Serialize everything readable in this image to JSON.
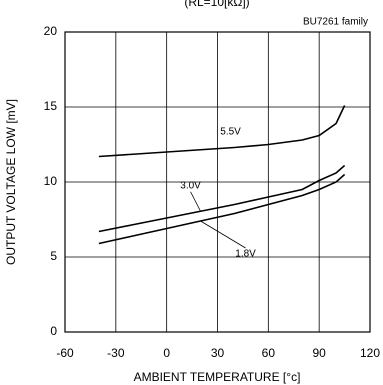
{
  "chart_data": {
    "type": "line",
    "title": "(RL=10[kΩ])",
    "annotation": "BU7261 family",
    "x_label": "AMBIENT TEMPERATURE [°c]",
    "y_label": "OUTPUT VOLTAGE LOW [mV]",
    "x": [
      -40,
      -20,
      0,
      20,
      40,
      60,
      80,
      90,
      100,
      105
    ],
    "series": [
      {
        "name": "5.5V",
        "color": "#000000",
        "values": [
          11.7,
          11.85,
          12.0,
          12.15,
          12.3,
          12.5,
          12.8,
          13.1,
          13.9,
          15.1
        ]
      },
      {
        "name": "3.0V",
        "color": "#000000",
        "values": [
          6.7,
          7.15,
          7.6,
          8.05,
          8.5,
          9.0,
          9.5,
          10.1,
          10.6,
          11.1
        ]
      },
      {
        "name": "1.8V",
        "color": "#000000",
        "values": [
          5.9,
          6.4,
          6.9,
          7.4,
          7.9,
          8.5,
          9.1,
          9.5,
          10.0,
          10.5
        ]
      }
    ],
    "xlim": [
      -60,
      120
    ],
    "xticks": [
      -60,
      -30,
      0,
      30,
      60,
      90,
      120
    ],
    "ylim": [
      0,
      20
    ],
    "yticks": [
      0,
      5,
      10,
      15,
      20
    ],
    "grid": true
  }
}
